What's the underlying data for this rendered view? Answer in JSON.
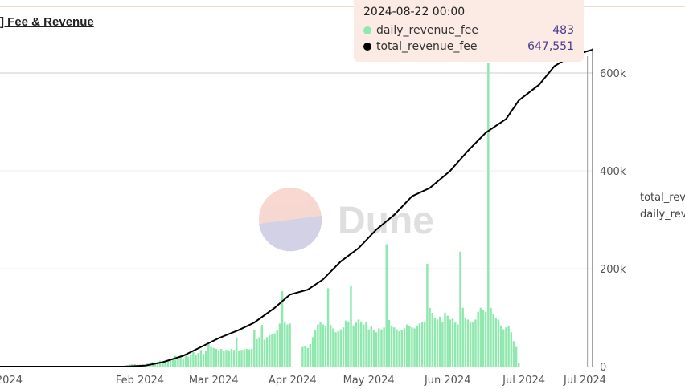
{
  "chart_data": {
    "type": "bar+line",
    "title": "] Fee & Revenue",
    "x_tick_labels": [
      "2024",
      "Feb 2024",
      "Mar 2024",
      "Apr 2024",
      "May 2024",
      "Jun 2024",
      "Jul 2024",
      "Jul 2024"
    ],
    "y_right": {
      "ticks": [
        "0",
        "200k",
        "400k",
        "600k"
      ],
      "ylim": [
        0,
        650000
      ]
    },
    "grid": true,
    "legend": {
      "placement": "right",
      "entries": [
        "total_rev",
        "daily_rev"
      ]
    },
    "series": [
      {
        "name": "daily_revenue_fee",
        "type": "bar",
        "color": "#8fe8ad"
      },
      {
        "name": "total_revenue_fee",
        "type": "line",
        "color": "#000000"
      }
    ],
    "x_range_days": [
      -24,
      209
    ],
    "daily_bars": {
      "start_day": 25,
      "values": [
        2000,
        3000,
        4000,
        5000,
        5000,
        3000,
        4000,
        5000,
        4000,
        6000,
        6000,
        9000,
        8000,
        10000,
        12000,
        10000,
        11000,
        14000,
        16000,
        14000,
        22000,
        18000,
        24000,
        16000,
        26000,
        20000,
        25000,
        30000,
        24000,
        28000,
        34000,
        26000,
        32000,
        46000,
        40000,
        38000,
        36000,
        34000,
        36000,
        33000,
        34000,
        33000,
        36000,
        34000,
        60000,
        33000,
        34000,
        35000,
        36000,
        35000,
        36000,
        74000,
        56000,
        60000,
        85000,
        55000,
        60000,
        64000,
        66000,
        68000,
        74000,
        88000,
        154000,
        90000,
        86000,
        88000,
        0,
        0,
        0,
        0,
        40000,
        42000,
        38000,
        46000,
        60000,
        74000,
        86000,
        90000,
        86000,
        82000,
        160000,
        85000,
        78000,
        70000,
        72000,
        76000,
        80000,
        94000,
        92000,
        164000,
        84000,
        90000,
        96000,
        92000,
        86000,
        90000,
        76000,
        82000,
        74000,
        70000,
        78000,
        76000,
        80000,
        250000,
        95000,
        84000,
        80000,
        76000,
        72000,
        74000,
        78000,
        86000,
        82000,
        80000,
        78000,
        84000,
        88000,
        90000,
        92000,
        210000,
        120000,
        110000,
        100000,
        96000,
        102000,
        92000,
        110000,
        104000,
        96000,
        98000,
        90000,
        86000,
        235000,
        120000,
        100000,
        96000,
        92000,
        90000,
        96000,
        112000,
        120000,
        116000,
        112000,
        620000,
        120000,
        108000,
        100000,
        96000,
        84000,
        76000,
        80000,
        82000,
        70000,
        52000,
        40000,
        8000
      ]
    },
    "total_line": {
      "x_days": [
        -24,
        25,
        33,
        40,
        48,
        55,
        62,
        70,
        76,
        84,
        90,
        97,
        103,
        110,
        117,
        124,
        131,
        138,
        145,
        153,
        160,
        167,
        175,
        180,
        188,
        194,
        201,
        209
      ],
      "y": [
        0,
        0,
        2000,
        9000,
        22000,
        40000,
        58000,
        75000,
        90000,
        120000,
        147000,
        157000,
        178000,
        215000,
        242000,
        280000,
        310000,
        348000,
        365000,
        400000,
        441000,
        478000,
        506000,
        544000,
        576000,
        614000,
        636000,
        647551
      ]
    },
    "hover_marker_day": 207,
    "tooltip": {
      "date": "2024-08-22 00:00",
      "rows": [
        {
          "name": "daily_revenue_fee",
          "value": "483",
          "color": "#8fe8ad"
        },
        {
          "name": "total_revenue_fee",
          "value": "647,551",
          "color": "#000000"
        }
      ]
    }
  },
  "watermark": {
    "text": "Dune",
    "colors": [
      "#f7d4cb",
      "#cfcde3"
    ]
  }
}
